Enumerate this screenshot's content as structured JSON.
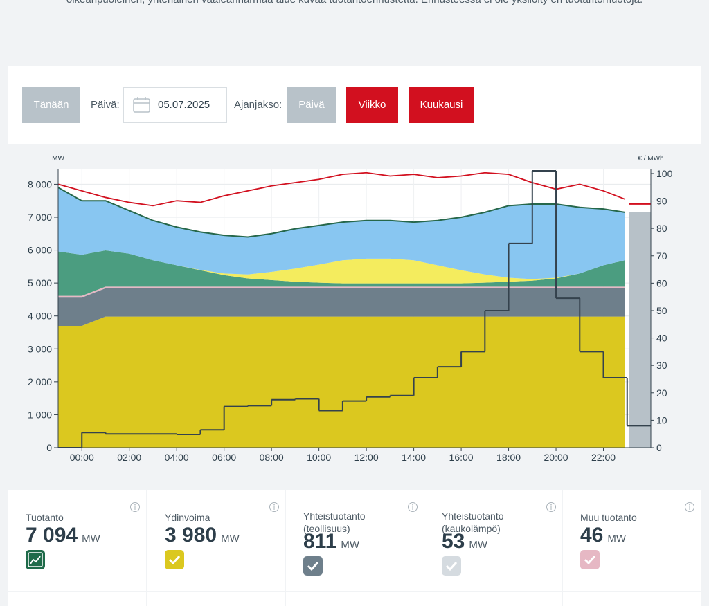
{
  "intro": "oikeanpuoleinen, yhtenäinen vaaleanharmaa alue kuvaa tuotantoennustetta. Ennusteessa ei ole yksilöity eri tuotantomuotoja.",
  "controls": {
    "today": "Tänään",
    "date_label": "Päivä:",
    "date": "05.07.2025",
    "period_label": "Ajanjakso:",
    "periods": [
      "Päivä",
      "Viikko",
      "Kuukausi"
    ]
  },
  "chart_data": {
    "type": "stacked-area",
    "y_label": "MW",
    "y2_label": "€ / MWh",
    "x": [
      -1,
      0,
      1,
      2,
      3,
      4,
      5,
      6,
      7,
      8,
      9,
      10,
      11,
      12,
      13,
      14,
      15,
      16,
      17,
      18,
      19,
      20,
      21,
      22,
      22.9
    ],
    "xlim": [
      -1,
      24
    ],
    "xticks": [
      {
        "value": 0,
        "label": "00:00"
      },
      {
        "value": 2,
        "label": "02:00"
      },
      {
        "value": 4,
        "label": "04:00"
      },
      {
        "value": 6,
        "label": "06:00"
      },
      {
        "value": 8,
        "label": "08:00"
      },
      {
        "value": 10,
        "label": "10:00"
      },
      {
        "value": 12,
        "label": "12:00"
      },
      {
        "value": 14,
        "label": "14:00"
      },
      {
        "value": 16,
        "label": "16:00"
      },
      {
        "value": 18,
        "label": "18:00"
      },
      {
        "value": 20,
        "label": "20:00"
      },
      {
        "value": 22,
        "label": "22:00"
      }
    ],
    "ylim": [
      0,
      8450
    ],
    "yticks": [
      0,
      {
        "value": 1000,
        "label": "1 000"
      },
      {
        "value": 2000,
        "label": "2 000"
      },
      {
        "value": 3000,
        "label": "3 000"
      },
      {
        "value": 4000,
        "label": "4 000"
      },
      {
        "value": 5000,
        "label": "5 000"
      },
      {
        "value": 6000,
        "label": "6 000"
      },
      {
        "value": 7000,
        "label": "7 000"
      },
      {
        "value": 8000,
        "label": "8 000"
      }
    ],
    "y2lim": [
      0,
      101.5
    ],
    "y2ticks": [
      0,
      10,
      20,
      30,
      40,
      50,
      60,
      70,
      80,
      90,
      100
    ],
    "grid": true,
    "series": [
      {
        "color": "#dbc81f",
        "values": [
          3700,
          3700,
          3980,
          3980,
          3980,
          3980,
          3980,
          3980,
          3980,
          3980,
          3980,
          3980,
          3980,
          3980,
          3980,
          3980,
          3980,
          3980,
          3980,
          3980,
          3980,
          3980,
          3980,
          3980,
          3980
        ]
      },
      {
        "color": "#6e7f8b",
        "values": [
          860,
          860,
          860,
          860,
          860,
          860,
          860,
          860,
          860,
          860,
          860,
          860,
          860,
          860,
          860,
          860,
          860,
          860,
          860,
          860,
          860,
          860,
          860,
          860,
          860
        ]
      },
      {
        "color": "#e6b8c4",
        "values": [
          50,
          50,
          50,
          50,
          50,
          50,
          50,
          50,
          50,
          50,
          50,
          50,
          50,
          50,
          50,
          50,
          50,
          50,
          50,
          50,
          50,
          50,
          50,
          50,
          50
        ]
      },
      {
        "color": "#4b9d80",
        "values": [
          1350,
          1250,
          1100,
          1000,
          800,
          650,
          500,
          350,
          250,
          200,
          150,
          120,
          100,
          100,
          100,
          100,
          100,
          100,
          120,
          150,
          180,
          250,
          400,
          650,
          800
        ]
      },
      {
        "color": "#f4ec5e",
        "values": [
          0,
          0,
          0,
          0,
          0,
          0,
          10,
          50,
          120,
          250,
          400,
          550,
          700,
          750,
          750,
          700,
          550,
          400,
          250,
          120,
          50,
          20,
          0,
          0,
          0
        ]
      },
      {
        "color": "#88c6f1",
        "values": [
          1940,
          1640,
          1510,
          1310,
          1210,
          1160,
          1150,
          1160,
          1140,
          1160,
          1210,
          1190,
          1160,
          1160,
          1160,
          1160,
          1360,
          1610,
          1890,
          2190,
          2280,
          2240,
          2010,
          1710,
          1460
        ]
      }
    ],
    "outline_color": "#26674a",
    "consumption": {
      "color": "#d2101f",
      "values": [
        8000,
        7800,
        7600,
        7450,
        7350,
        7500,
        7450,
        7650,
        7800,
        7950,
        8050,
        8150,
        8300,
        8350,
        8250,
        8300,
        8200,
        8250,
        8350,
        8300,
        8050,
        7850,
        8000,
        7800,
        7550
      ]
    },
    "price": {
      "axis": "y2",
      "color": "#34424d",
      "x": [
        -1,
        0,
        1,
        2,
        3,
        4,
        5,
        6,
        7,
        8,
        9,
        10,
        11,
        12,
        13,
        14,
        15,
        16,
        17,
        18,
        19,
        20,
        21,
        22,
        23
      ],
      "values": [
        0,
        5.5,
        5,
        5,
        5,
        4.8,
        6.5,
        15,
        15.3,
        17.5,
        17.8,
        13.5,
        17,
        18.5,
        19,
        25.5,
        29.5,
        35,
        50,
        74.5,
        101,
        54.5,
        35,
        25.5,
        8
      ]
    },
    "forecast": {
      "color": "#b7c1c8",
      "x": [
        23,
        24
      ],
      "values": [
        7150,
        7150
      ]
    },
    "forecast_consumption": {
      "color": "#d2101f",
      "x": [
        23,
        24
      ],
      "values": [
        7400,
        7400
      ]
    }
  },
  "cards": [
    {
      "title": "Tuotanto",
      "value": "7 094",
      "unit": "MW"
    },
    {
      "title": "Ydinvoima",
      "value": "3 980",
      "unit": "MW"
    },
    {
      "title": "Yhteistuotanto (teollisuus)",
      "value": "811",
      "unit": "MW"
    },
    {
      "title": "Yhteistuotanto (kaukolämpö)",
      "value": "53",
      "unit": "MW"
    },
    {
      "title": "Muu tuotanto",
      "value": "46",
      "unit": "MW"
    }
  ]
}
